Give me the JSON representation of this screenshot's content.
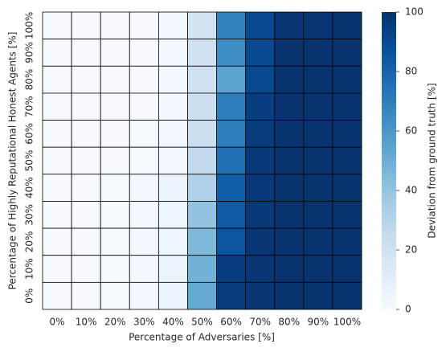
{
  "chart_data": {
    "type": "heatmap",
    "x_label": "Percentage of Adversaries [%]",
    "y_label": "Percentage of Highly Reputational Honest Agents [%]",
    "colorbar_label": "Deviation from ground truth [%]",
    "x_categories": [
      "0%",
      "10%",
      "20%",
      "30%",
      "40%",
      "50%",
      "60%",
      "70%",
      "80%",
      "90%",
      "100%"
    ],
    "y_categories": [
      "100%",
      "90%",
      "80%",
      "70%",
      "60%",
      "50%",
      "40%",
      "30%",
      "20%",
      "10%",
      "0%"
    ],
    "z": [
      [
        0,
        0,
        0,
        0,
        2,
        18,
        68,
        90,
        98,
        98,
        99
      ],
      [
        0,
        0,
        0,
        0,
        2,
        20,
        64,
        90,
        99,
        99,
        99
      ],
      [
        0,
        0,
        0,
        0,
        2,
        20,
        55,
        90,
        99,
        99,
        99
      ],
      [
        0,
        0,
        0,
        0,
        2,
        22,
        70,
        95,
        99,
        99,
        99
      ],
      [
        0,
        0,
        0,
        1,
        3,
        22,
        70,
        96,
        99,
        99,
        99
      ],
      [
        0,
        0,
        0,
        1,
        3,
        26,
        75,
        97,
        99,
        99,
        99
      ],
      [
        0,
        0,
        1,
        2,
        6,
        32,
        82,
        97,
        99,
        99,
        99
      ],
      [
        0,
        0,
        1,
        2,
        5,
        40,
        84,
        97,
        99,
        99,
        99
      ],
      [
        0,
        0,
        1,
        2,
        5,
        45,
        86,
        98,
        99,
        99,
        99
      ],
      [
        0,
        0,
        1,
        2,
        6,
        48,
        95,
        98,
        99,
        99,
        99
      ],
      [
        0,
        0,
        1,
        2,
        6,
        52,
        96,
        98,
        99,
        99,
        99
      ]
    ],
    "zlim": [
      0,
      100
    ],
    "zticks": [
      0,
      20,
      40,
      60,
      80,
      100
    ],
    "colorscale": [
      "#f7fbff",
      "#deebf7",
      "#c6dbef",
      "#9ecae1",
      "#6baed6",
      "#4292c6",
      "#2171b5",
      "#08519c",
      "#08306b"
    ],
    "cell_border": "#000000"
  }
}
